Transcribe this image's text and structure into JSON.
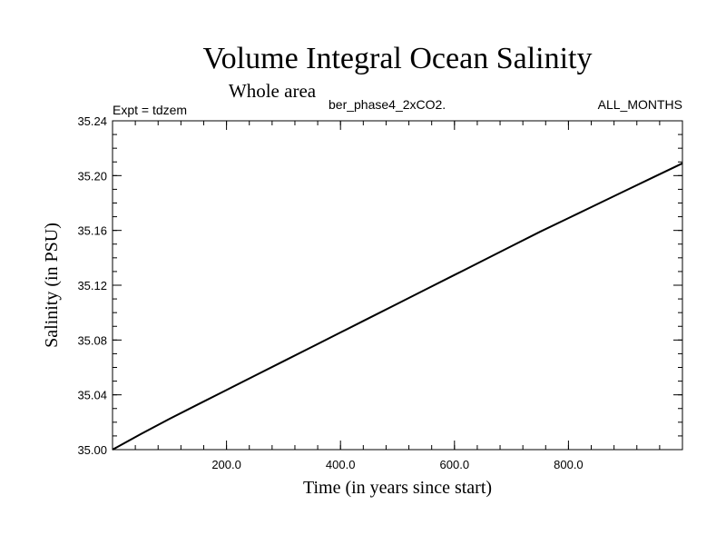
{
  "chart_data": {
    "type": "line",
    "title": "Volume Integral Ocean Salinity",
    "subtitle": "Whole area",
    "experiment_label": "Expt = tdzem",
    "run_name": "ber_phase4_2xCO2.",
    "period_label": "ALL_MONTHS",
    "xlabel": "Time (in years since start)",
    "ylabel": "Salinity (in PSU)",
    "xlim": [
      0,
      1000
    ],
    "ylim": [
      35.0,
      35.24
    ],
    "x_major_ticks": [
      200,
      400,
      600,
      800
    ],
    "x_tick_labels": [
      "200.0",
      "400.0",
      "600.0",
      "800.0"
    ],
    "x_minor_step": 40,
    "y_major_ticks": [
      35.0,
      35.04,
      35.08,
      35.12,
      35.16,
      35.2,
      35.24
    ],
    "y_tick_labels": [
      "35.00",
      "35.04",
      "35.08",
      "35.12",
      "35.16",
      "35.20",
      "35.24"
    ],
    "y_minor_step": 0.01,
    "grid": false,
    "series": [
      {
        "name": "Salinity",
        "x": [
          0,
          50,
          100,
          150,
          200,
          250,
          300,
          350,
          400,
          450,
          500,
          550,
          600,
          650,
          700,
          750,
          800,
          850,
          900,
          950,
          1000
        ],
        "values": [
          35.0,
          35.0115,
          35.0225,
          35.033,
          35.0435,
          35.054,
          35.0645,
          35.075,
          35.0855,
          35.096,
          35.1065,
          35.117,
          35.1275,
          35.138,
          35.1485,
          35.159,
          35.169,
          35.179,
          35.189,
          35.199,
          35.209
        ]
      }
    ]
  }
}
